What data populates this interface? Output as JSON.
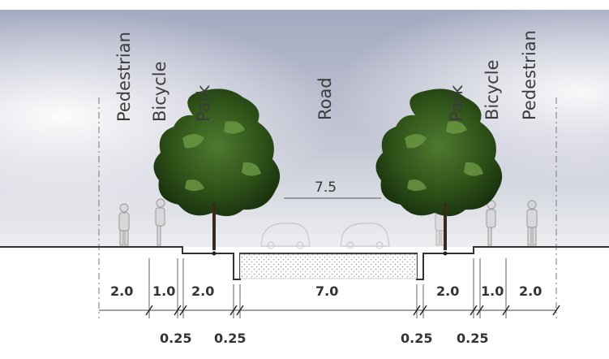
{
  "labels": {
    "left_pedestrian": "Pedestrian",
    "left_bicycle": "Bicycle",
    "left_park": "Park",
    "road": "Road",
    "right_park": "Park",
    "right_bicycle": "Bicycle",
    "right_pedestrian": "Pedestrian"
  },
  "dimensions": {
    "road_total": "7.5",
    "left_pedestrian_width": "2.0",
    "left_bicycle_width": "1.0",
    "left_park_width": "2.0",
    "carriageway_width": "7.0",
    "right_park_width": "2.0",
    "right_bicycle_width": "1.0",
    "right_pedestrian_width": "2.0",
    "left_kerb_a": "0.25",
    "left_kerb_b": "0.25",
    "right_kerb_a": "0.25",
    "right_kerb_b": "0.25"
  },
  "colors": {
    "sky_top": "#a9aec4",
    "sky_bottom": "#e9ecef",
    "tree_dark": "#1f3a14",
    "tree_light": "#5f8a3a",
    "ground_line": "#333333",
    "hatch": "#9a9a9a"
  }
}
